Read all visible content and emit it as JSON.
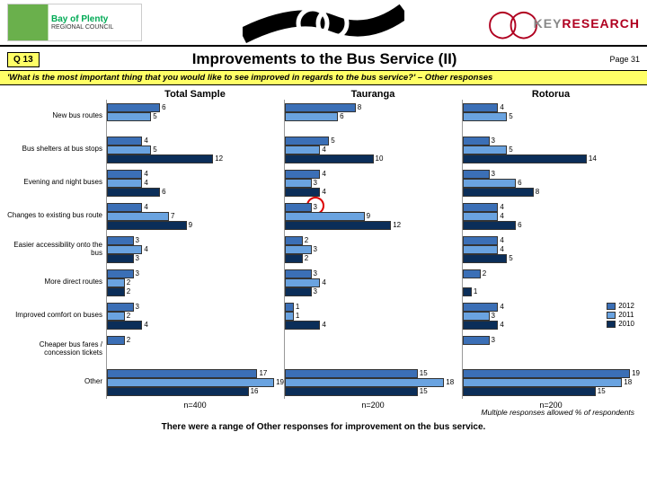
{
  "header": {
    "left_logo_l1": "Bay of Plenty",
    "left_logo_l2": "REGIONAL COUNCIL",
    "right_logo_key": "KEY",
    "right_logo_research": "RESEARCH"
  },
  "title_row": {
    "badge": "Q 13",
    "title": "Improvements to the Bus Service (II)",
    "page": "Page 31"
  },
  "question": "'What is the most important thing that you would like to see improved in regards to the bus service?' – Other responses",
  "panels": [
    "Total Sample",
    "Tauranga",
    "Rotorua"
  ],
  "colors": {
    "y2012": "#3b6fb6",
    "y2011": "#6aa3e0",
    "y2010": "#0b2e59",
    "border": "#333333",
    "highlight_bg": "#ffff66"
  },
  "legend": [
    {
      "label": "2012",
      "key": "y2012"
    },
    {
      "label": "2011",
      "key": "y2011"
    },
    {
      "label": "2010",
      "key": "y2010"
    }
  ],
  "max_value": 20,
  "categories": [
    {
      "label": "New bus routes",
      "data": [
        [
          6,
          5,
          null
        ],
        [
          8,
          6,
          null
        ],
        [
          4,
          5,
          null
        ]
      ]
    },
    {
      "label": "Bus shelters at bus stops",
      "data": [
        [
          4,
          5,
          12
        ],
        [
          5,
          4,
          10
        ],
        [
          3,
          5,
          14
        ]
      ]
    },
    {
      "label": "Evening and night buses",
      "data": [
        [
          4,
          4,
          6
        ],
        [
          4,
          3,
          4
        ],
        [
          3,
          6,
          8
        ]
      ]
    },
    {
      "label": "Changes to existing bus route",
      "data": [
        [
          4,
          7,
          9
        ],
        [
          3,
          9,
          12
        ],
        [
          4,
          4,
          6
        ]
      ],
      "circle_panel": 1,
      "circle_bar": 0
    },
    {
      "label": "Easier accessibility onto the bus",
      "data": [
        [
          3,
          4,
          3
        ],
        [
          2,
          3,
          2
        ],
        [
          4,
          4,
          5
        ]
      ]
    },
    {
      "label": "More direct routes",
      "data": [
        [
          3,
          2,
          2
        ],
        [
          3,
          4,
          3
        ],
        [
          2,
          null,
          1
        ]
      ]
    },
    {
      "label": "Improved comfort on buses",
      "data": [
        [
          3,
          2,
          4
        ],
        [
          1,
          1,
          4
        ],
        [
          4,
          3,
          4
        ]
      ]
    },
    {
      "label": "Cheaper bus fares / concession tickets",
      "data": [
        [
          2,
          null,
          null
        ],
        [
          null,
          null,
          null
        ],
        [
          3,
          null,
          null
        ]
      ]
    },
    {
      "label": "Other",
      "data": [
        [
          17,
          19,
          16
        ],
        [
          15,
          18,
          15
        ],
        [
          19,
          18,
          15
        ]
      ]
    }
  ],
  "footer_n": [
    "n=400",
    "n=200",
    "n=200"
  ],
  "footnote": "Multiple responses allowed        % of respondents",
  "caption": "There were a range of Other responses for improvement on the bus service."
}
